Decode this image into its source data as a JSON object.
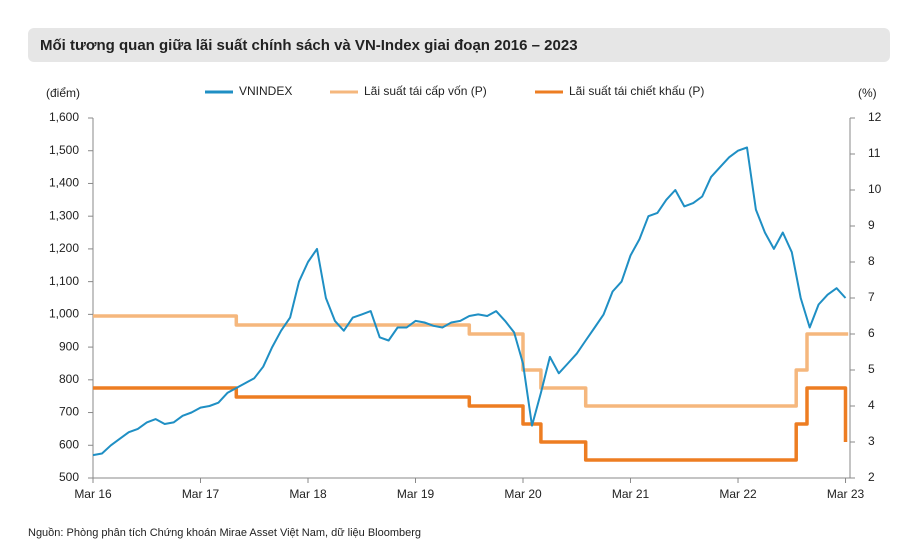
{
  "chart_data": {
    "type": "line",
    "title": "Mối tương quan giữa lãi suất chính sách và VN-Index giai đoạn 2016 – 2023",
    "y_label": "(điểm)",
    "y2_label": "(%)",
    "source": "Nguồn: Phòng phân tích Chứng khoán Mirae Asset Việt Nam, dữ liệu Bloomberg",
    "xlim": [
      0,
      84.5
    ],
    "xticks": [
      {
        "value": 0,
        "label": "Mar 16"
      },
      {
        "value": 12,
        "label": "Mar 17"
      },
      {
        "value": 24,
        "label": "Mar 18"
      },
      {
        "value": 36,
        "label": "Mar 19"
      },
      {
        "value": 48,
        "label": "Mar 20"
      },
      {
        "value": 60,
        "label": "Mar 21"
      },
      {
        "value": 72,
        "label": "Mar 22"
      },
      {
        "value": 84,
        "label": "Mar 23"
      }
    ],
    "ylim": [
      500,
      1600
    ],
    "yticks": [
      500,
      600,
      700,
      800,
      900,
      {
        "value": 1000,
        "label": "1,000"
      },
      {
        "value": 1100,
        "label": "1,100"
      },
      {
        "value": 1200,
        "label": "1,200"
      },
      {
        "value": 1300,
        "label": "1,300"
      },
      {
        "value": 1400,
        "label": "1,400"
      },
      {
        "value": 1500,
        "label": "1,500"
      },
      {
        "value": 1600,
        "label": "1,600"
      }
    ],
    "y2lim": [
      2,
      12
    ],
    "y2ticks": [
      2,
      3,
      4,
      5,
      6,
      7,
      8,
      9,
      10,
      11,
      12
    ],
    "series": [
      {
        "name": "VNINDEX",
        "color": "#1f8fc4",
        "x": [
          0,
          1,
          2,
          3,
          4,
          5,
          6,
          7,
          8,
          9,
          10,
          11,
          12,
          13,
          14,
          15,
          16,
          17,
          18,
          19,
          20,
          21,
          22,
          23,
          24,
          25,
          26,
          27,
          28,
          29,
          30,
          31,
          32,
          33,
          34,
          35,
          36,
          37,
          38,
          39,
          40,
          41,
          42,
          43,
          44,
          45,
          46,
          47,
          48,
          49,
          50,
          51,
          52,
          53,
          54,
          55,
          56,
          57,
          58,
          59,
          60,
          61,
          62,
          63,
          64,
          65,
          66,
          67,
          68,
          69,
          70,
          71,
          72,
          73,
          74,
          75,
          76,
          77,
          78,
          79,
          80,
          81,
          82,
          83,
          84
        ],
        "values": [
          570,
          575,
          600,
          620,
          640,
          650,
          670,
          680,
          665,
          670,
          690,
          700,
          715,
          720,
          730,
          760,
          775,
          790,
          805,
          840,
          900,
          950,
          990,
          1100,
          1160,
          1200,
          1050,
          980,
          950,
          990,
          1000,
          1010,
          930,
          920,
          960,
          960,
          980,
          975,
          965,
          960,
          975,
          980,
          995,
          1000,
          995,
          1010,
          980,
          945,
          850,
          660,
          760,
          870,
          820,
          850,
          880,
          920,
          960,
          1000,
          1070,
          1100,
          1180,
          1230,
          1300,
          1310,
          1350,
          1380,
          1330,
          1340,
          1360,
          1420,
          1450,
          1480,
          1500,
          1510,
          1320,
          1250,
          1200,
          1250,
          1190,
          1050,
          960,
          1030,
          1060,
          1080,
          1050
        ]
      },
      {
        "name": "Lãi suất tái cấp vốn (P)",
        "color": "#f5b77d",
        "axis": "y2",
        "x": [
          0,
          16,
          16,
          42,
          42,
          48,
          48,
          50,
          50,
          55,
          55,
          78.5,
          78.5,
          79.7,
          79.7,
          84.3
        ],
        "values": [
          6.5,
          6.5,
          6.25,
          6.25,
          6,
          6,
          5,
          5,
          4.5,
          4.5,
          4,
          4,
          5,
          5,
          6,
          6
        ]
      },
      {
        "name": "Lãi suất tái chiết khấu (P)",
        "color": "#ed7d22",
        "axis": "y2",
        "x": [
          0,
          16,
          16,
          42,
          42,
          48,
          48,
          50,
          50,
          55,
          55,
          78.5,
          78.5,
          79.7,
          79.7,
          84,
          84
        ],
        "values": [
          4.5,
          4.5,
          4.25,
          4.25,
          4,
          4,
          3.5,
          3.5,
          3,
          3,
          2.5,
          2.5,
          3.5,
          3.5,
          4.5,
          4.5,
          3
        ]
      }
    ]
  }
}
